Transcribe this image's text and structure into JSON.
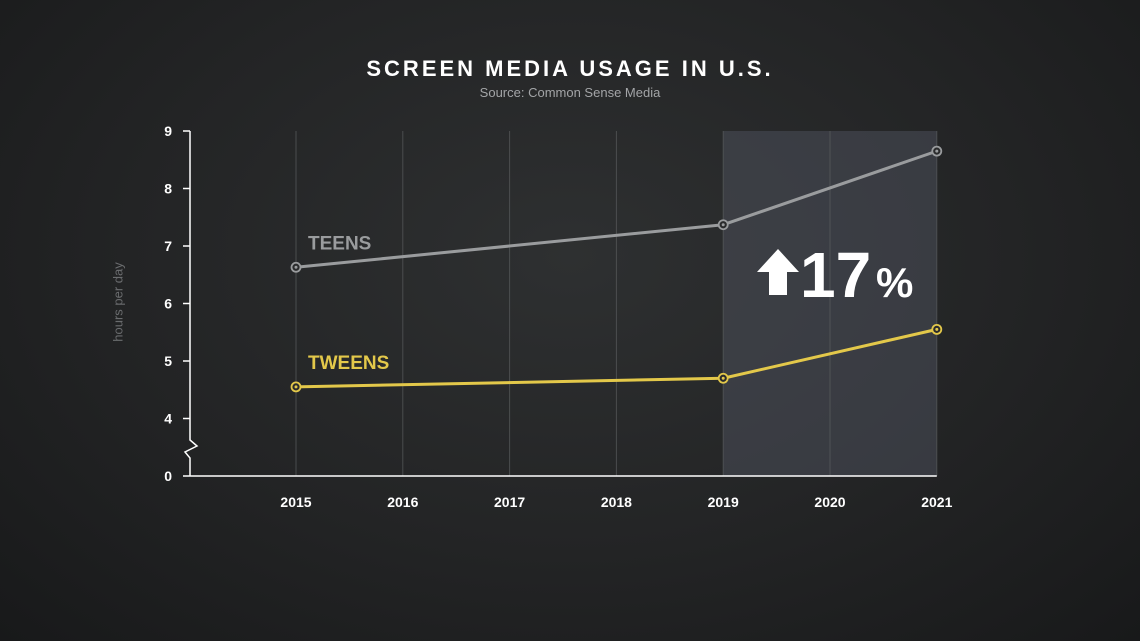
{
  "chart_data": {
    "type": "line",
    "title": "SCREEN MEDIA USAGE IN U.S.",
    "subtitle": "Source: Common Sense Media",
    "xlabel": "",
    "ylabel": "hours per day",
    "x": [
      2015,
      2016,
      2017,
      2018,
      2019,
      2020,
      2021
    ],
    "x_tick_labels": [
      "2015",
      "2016",
      "2017",
      "2018",
      "2019",
      "2020",
      "2021"
    ],
    "y_tick_labels": [
      "0",
      "4",
      "5",
      "6",
      "7",
      "8",
      "9"
    ],
    "ylim": [
      0,
      9
    ],
    "y_axis_break_between": [
      0,
      4
    ],
    "grid": "vertical",
    "series": [
      {
        "name": "TEENS",
        "color": "#9a9c9e",
        "x": [
          2015,
          2019,
          2021
        ],
        "y": [
          6.63,
          7.37,
          8.65
        ]
      },
      {
        "name": "TWEENS",
        "color": "#e3c84a",
        "x": [
          2015,
          2019,
          2021
        ],
        "y": [
          4.55,
          4.7,
          5.55
        ]
      }
    ],
    "highlight": {
      "x_range": [
        2019,
        2021
      ],
      "label": "17",
      "unit": "%",
      "direction": "up"
    }
  }
}
